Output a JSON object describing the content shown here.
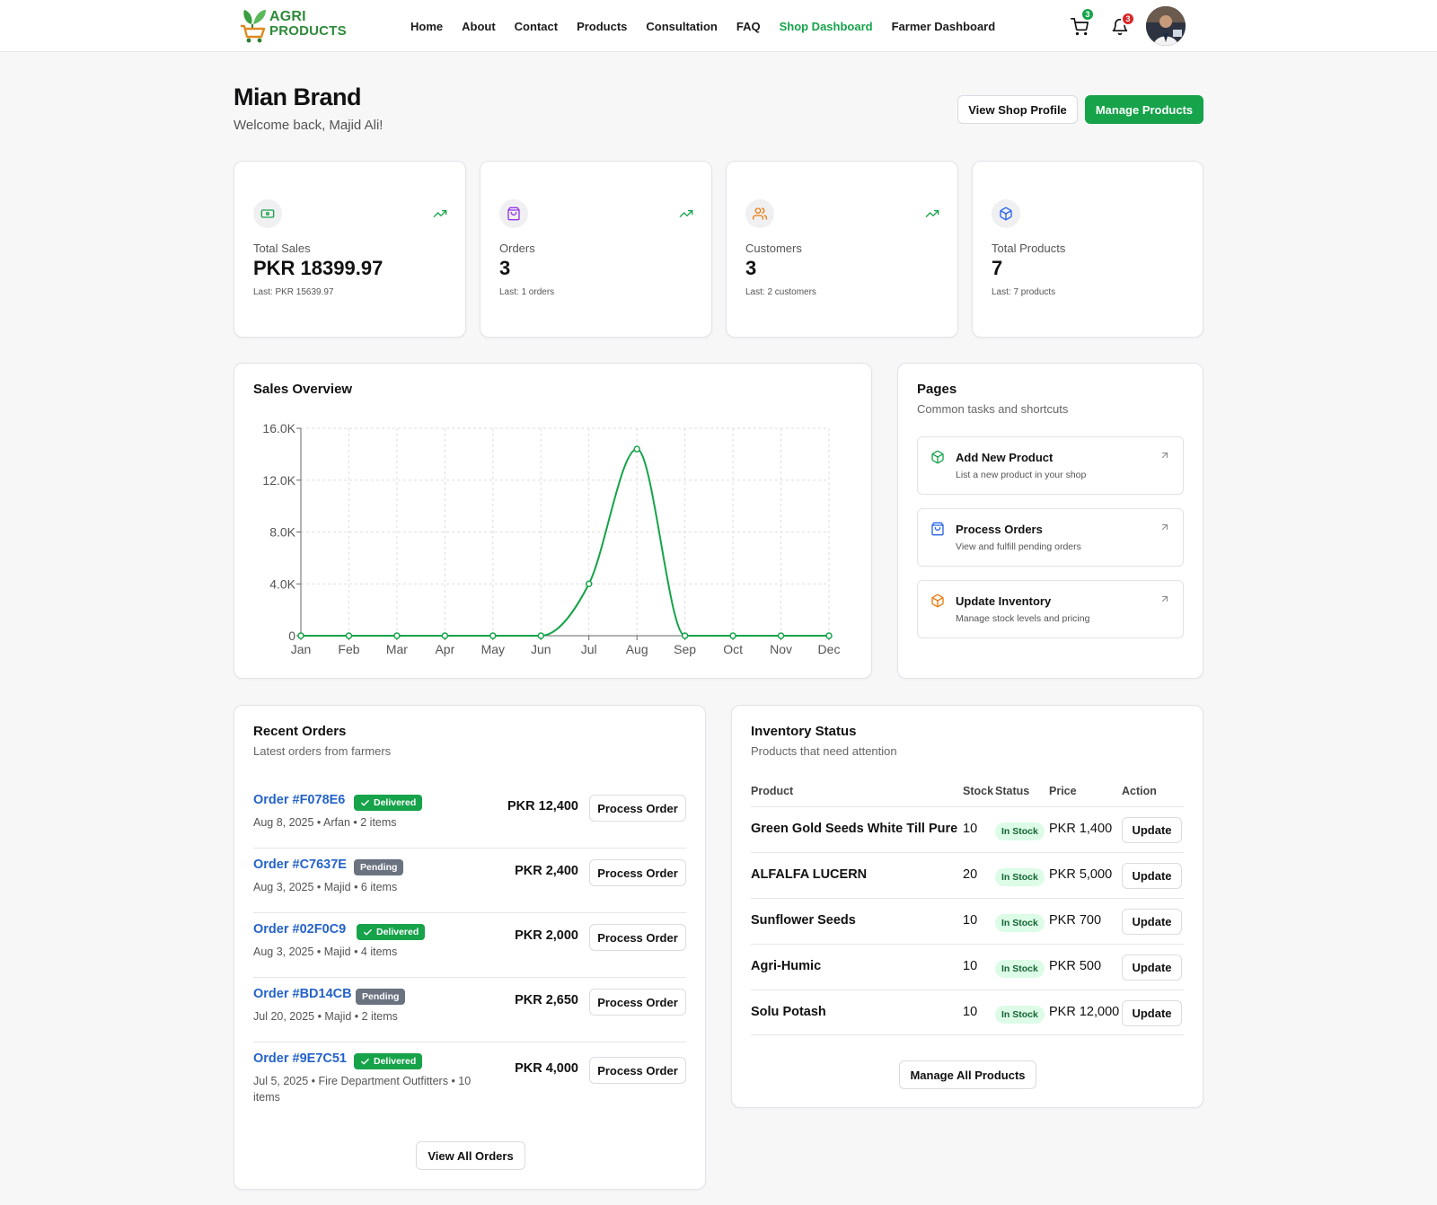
{
  "brand": {
    "logo_line1": "AGRI",
    "logo_line2": "PRODUCTS"
  },
  "nav": {
    "links": [
      "Home",
      "About",
      "Contact",
      "Products",
      "Consultation",
      "FAQ",
      "Shop Dashboard",
      "Farmer Dashboard"
    ],
    "active": "Shop Dashboard",
    "cart_count": "3",
    "notification_count": "3"
  },
  "header": {
    "title": "Mian Brand",
    "welcome": "Welcome back, Majid Ali!",
    "view_profile_label": "View Shop Profile",
    "manage_products_label": "Manage Products"
  },
  "stats": [
    {
      "label": "Total Sales",
      "value": "PKR 18399.97",
      "last": "Last: PKR 15639.97",
      "icon": "money-icon",
      "trend": true
    },
    {
      "label": "Orders",
      "value": "3",
      "last": "Last: 1 orders",
      "icon": "shopping-bag-icon",
      "trend": true
    },
    {
      "label": "Customers",
      "value": "3",
      "last": "Last: 2 customers",
      "icon": "users-icon",
      "trend": true
    },
    {
      "label": "Total Products",
      "value": "7",
      "last": "Last: 7 products",
      "icon": "package-icon",
      "trend": false
    }
  ],
  "sales": {
    "title": "Sales Overview",
    "chart_data": {
      "type": "line",
      "categories": [
        "Jan",
        "Feb",
        "Mar",
        "Apr",
        "May",
        "Jun",
        "Jul",
        "Aug",
        "Sep",
        "Oct",
        "Nov",
        "Dec"
      ],
      "values": [
        0,
        0,
        0,
        0,
        0,
        0,
        4000,
        14400,
        0,
        0,
        0,
        0
      ],
      "ylim": [
        0,
        16000
      ],
      "yticks": [
        "0",
        "4.0K",
        "8.0K",
        "12.0K",
        "16.0K"
      ],
      "ytick_values": [
        0,
        4000,
        8000,
        12000,
        16000
      ],
      "grid": true,
      "color": "#16a34a"
    }
  },
  "pages": {
    "title": "Pages",
    "subtitle": "Common tasks and shortcuts",
    "links": [
      {
        "title": "Add New Product",
        "desc": "List a new product in your shop",
        "icon": "package-icon",
        "color": "#16a34a"
      },
      {
        "title": "Process Orders",
        "desc": "View and fulfill pending orders",
        "icon": "shopping-bag-icon",
        "color": "#2563eb"
      },
      {
        "title": "Update Inventory",
        "desc": "Manage stock levels and pricing",
        "icon": "box-icon",
        "color": "#ea7a0c"
      }
    ]
  },
  "orders": {
    "title": "Recent Orders",
    "subtitle": "Latest orders from farmers",
    "button_label": "Process Order",
    "view_all_label": "View All Orders",
    "items": [
      {
        "id": "Order #F078E6",
        "status": "Delivered",
        "meta": "Aug 8, 2025 • Arfan • 2 items",
        "amount": "PKR 12,400"
      },
      {
        "id": "Order #C7637E",
        "status": "Pending",
        "meta": "Aug 3, 2025 • Majid • 6 items",
        "amount": "PKR 2,400"
      },
      {
        "id": "Order #02F0C9",
        "status": "Delivered",
        "meta": "Aug 3, 2025 • Majid • 4 items",
        "amount": "PKR 2,000"
      },
      {
        "id": "Order #BD14CB",
        "status": "Pending",
        "meta": "Jul 20, 2025 • Majid • 2 items",
        "amount": "PKR 2,650"
      },
      {
        "id": "Order #9E7C51",
        "status": "Delivered",
        "meta": "Jul 5, 2025 • Fire Department Outfitters • 10 items",
        "amount": "PKR 4,000"
      }
    ]
  },
  "inventory": {
    "title": "Inventory Status",
    "subtitle": "Products that need attention",
    "columns": [
      "Product",
      "Stock",
      "Status",
      "Price",
      "Action"
    ],
    "button_label": "Update",
    "manage_all_label": "Manage All Products",
    "rows": [
      {
        "product": "Green Gold Seeds White Till Pure",
        "stock": "10",
        "status": "In Stock",
        "price": "PKR 1,400"
      },
      {
        "product": "ALFALFA LUCERN",
        "stock": "20",
        "status": "In Stock",
        "price": "PKR 5,000"
      },
      {
        "product": "Sunflower Seeds",
        "stock": "10",
        "status": "In Stock",
        "price": "PKR 700"
      },
      {
        "product": "Agri-Humic",
        "stock": "10",
        "status": "In Stock",
        "price": "PKR 500"
      },
      {
        "product": "Solu Potash",
        "stock": "10",
        "status": "In Stock",
        "price": "PKR 12,000"
      }
    ]
  },
  "colors": {
    "accent": "#16a34a",
    "link": "#2563c9",
    "badge_red": "#dc2626",
    "pending": "#6b7280"
  }
}
